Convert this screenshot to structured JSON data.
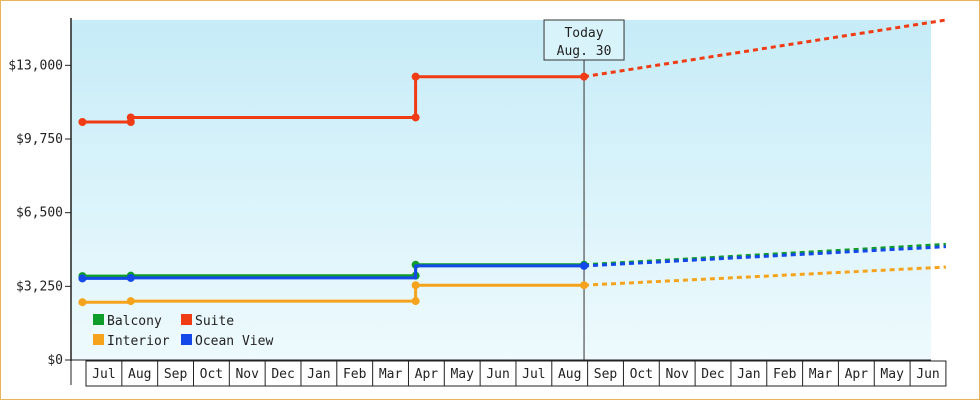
{
  "chart_data": {
    "type": "line",
    "y_ticks": [
      "$0",
      "$3,250",
      "$6,500",
      "$9,750",
      "$13,000"
    ],
    "y_tick_values": [
      0,
      3250,
      6500,
      9750,
      13000
    ],
    "ylim": [
      0,
      15000
    ],
    "x_labels": [
      "Jul",
      "Aug",
      "Sep",
      "Oct",
      "Nov",
      "Dec",
      "Jan",
      "Feb",
      "Mar",
      "Apr",
      "May",
      "Jun",
      "Jul",
      "Aug",
      "Sep",
      "Oct",
      "Nov",
      "Dec",
      "Jan",
      "Feb",
      "Mar",
      "Apr",
      "May",
      "Jun"
    ],
    "today": {
      "line1": "Today",
      "line2": "Aug. 30",
      "month_index": 13.9
    },
    "background_gradient": [
      "#c6ecf8",
      "#eefafd"
    ],
    "grid": false,
    "legend_position": "bottom-left",
    "series": [
      {
        "name": "Balcony",
        "color": "#0e9c2a",
        "history": [
          [
            -0.1,
            3700
          ],
          [
            1.25,
            3700
          ],
          [
            1.25,
            3720
          ],
          [
            9.2,
            3720
          ],
          [
            9.2,
            4200
          ],
          [
            13.9,
            4200
          ]
        ],
        "markers": [
          [
            -0.1,
            3700
          ],
          [
            1.25,
            3720
          ],
          [
            9.2,
            3720
          ],
          [
            9.2,
            4200
          ],
          [
            13.9,
            4200
          ]
        ],
        "forecast": [
          [
            13.9,
            4200
          ],
          [
            24,
            5100
          ]
        ]
      },
      {
        "name": "Suite",
        "color": "#f03c14",
        "history": [
          [
            -0.1,
            10500
          ],
          [
            1.25,
            10500
          ],
          [
            1.25,
            10700
          ],
          [
            9.2,
            10700
          ],
          [
            9.2,
            12500
          ],
          [
            13.9,
            12500
          ]
        ],
        "markers": [
          [
            -0.1,
            10500
          ],
          [
            1.25,
            10500
          ],
          [
            1.25,
            10700
          ],
          [
            9.2,
            10700
          ],
          [
            9.2,
            12500
          ],
          [
            13.9,
            12500
          ]
        ],
        "forecast": [
          [
            13.9,
            12500
          ],
          [
            24,
            15000
          ]
        ]
      },
      {
        "name": "Interior",
        "color": "#f5a31c",
        "history": [
          [
            -0.1,
            2550
          ],
          [
            1.25,
            2550
          ],
          [
            1.25,
            2600
          ],
          [
            9.2,
            2600
          ],
          [
            9.2,
            3300
          ],
          [
            13.9,
            3300
          ]
        ],
        "markers": [
          [
            -0.1,
            2550
          ],
          [
            1.25,
            2600
          ],
          [
            9.2,
            2600
          ],
          [
            9.2,
            3300
          ],
          [
            13.9,
            3300
          ]
        ],
        "forecast": [
          [
            13.9,
            3300
          ],
          [
            24,
            4100
          ]
        ]
      },
      {
        "name": "Ocean View",
        "color": "#1448e8",
        "history": [
          [
            -0.1,
            3600
          ],
          [
            1.25,
            3600
          ],
          [
            1.25,
            3620
          ],
          [
            9.2,
            3620
          ],
          [
            9.2,
            4150
          ],
          [
            13.9,
            4150
          ]
        ],
        "markers": [
          [
            -0.1,
            3600
          ],
          [
            1.25,
            3620
          ],
          [
            13.9,
            4150
          ]
        ],
        "forecast": [
          [
            13.9,
            4150
          ],
          [
            24,
            5000
          ]
        ]
      }
    ]
  }
}
